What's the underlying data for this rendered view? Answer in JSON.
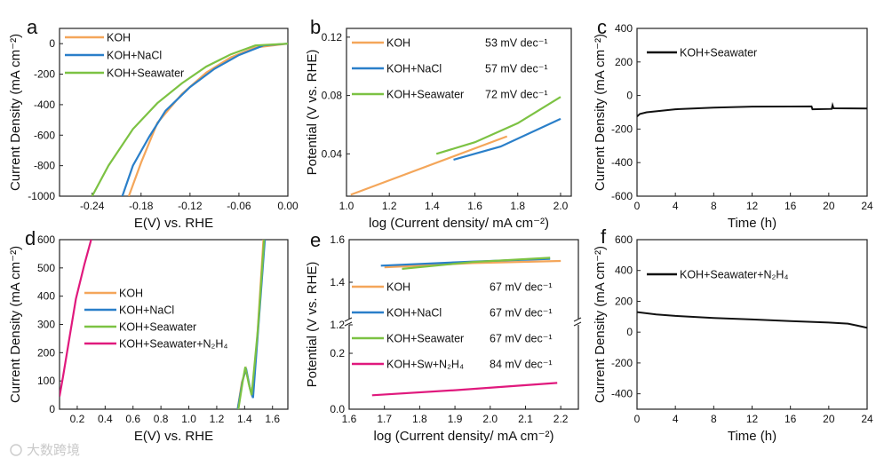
{
  "watermark": "大数跨境",
  "chart_data": [
    {
      "id": "a",
      "type": "line",
      "panel_label": "a",
      "xlabel": "E(V) vs. RHE",
      "ylabel": "Current Density (mA cm⁻²)",
      "xlim": [
        -0.28,
        0.0
      ],
      "ylim": [
        -1000,
        100
      ],
      "xticks": [
        -0.24,
        -0.18,
        -0.12,
        -0.06,
        0.0
      ],
      "xtick_labels": [
        "-0.24",
        "-0.18",
        "-0.12",
        "-0.06",
        "0.00"
      ],
      "yticks": [
        -1000,
        -800,
        -600,
        -400,
        -200,
        0
      ],
      "ytick_labels": [
        "-1000",
        "-800",
        "-600",
        "-400",
        "-200",
        "0"
      ],
      "legend": "top-left",
      "series": [
        {
          "name": "KOH",
          "color": "#f4a65a",
          "points": [
            [
              -0.195,
              -1000
            ],
            [
              -0.18,
              -780
            ],
            [
              -0.16,
              -520
            ],
            [
              -0.13,
              -330
            ],
            [
              -0.1,
              -190
            ],
            [
              -0.07,
              -90
            ],
            [
              -0.04,
              -25
            ],
            [
              0,
              0
            ]
          ]
        },
        {
          "name": "KOH+NaCl",
          "color": "#2a7fc9",
          "points": [
            [
              -0.203,
              -1000
            ],
            [
              -0.19,
              -800
            ],
            [
              -0.17,
              -610
            ],
            [
              -0.15,
              -440
            ],
            [
              -0.12,
              -285
            ],
            [
              -0.09,
              -165
            ],
            [
              -0.06,
              -75
            ],
            [
              -0.03,
              -12
            ],
            [
              0,
              0
            ]
          ]
        },
        {
          "name": "KOH+Seawater",
          "color": "#7cc243",
          "points": [
            [
              -0.24,
              -1000
            ],
            [
              -0.22,
              -800
            ],
            [
              -0.19,
              -560
            ],
            [
              -0.16,
              -390
            ],
            [
              -0.13,
              -260
            ],
            [
              -0.1,
              -150
            ],
            [
              -0.07,
              -70
            ],
            [
              -0.04,
              -12
            ],
            [
              0,
              0
            ]
          ]
        }
      ]
    },
    {
      "id": "b",
      "type": "line",
      "panel_label": "b",
      "xlabel": "log (Current density/ mA cm⁻²)",
      "ylabel": "Potential (V vs. RHE)",
      "xlim": [
        1.0,
        2.05
      ],
      "ylim": [
        0.011,
        0.126
      ],
      "xticks": [
        1.0,
        1.2,
        1.4,
        1.6,
        1.8,
        2.0
      ],
      "xtick_labels": [
        "1.0",
        "1.2",
        "1.4",
        "1.6",
        "1.8",
        "2.0"
      ],
      "yticks": [
        0.04,
        0.08,
        0.12
      ],
      "ytick_labels": [
        "0.04",
        "0.08",
        "0.12"
      ],
      "legend": "top-left",
      "series": [
        {
          "name": "KOH",
          "tafel": "53 mV dec⁻¹",
          "color": "#f4a65a",
          "points": [
            [
              1.02,
              0.012
            ],
            [
              1.75,
              0.052
            ]
          ]
        },
        {
          "name": "KOH+NaCl",
          "tafel": "57 mV dec⁻¹",
          "color": "#2a7fc9",
          "points": [
            [
              1.5,
              0.036
            ],
            [
              1.72,
              0.045
            ],
            [
              2.0,
              0.064
            ]
          ]
        },
        {
          "name": "KOH+Seawater",
          "tafel": "72 mV dec⁻¹",
          "color": "#7cc243",
          "points": [
            [
              1.42,
              0.04
            ],
            [
              1.6,
              0.048
            ],
            [
              1.8,
              0.061
            ],
            [
              2.0,
              0.079
            ]
          ]
        }
      ]
    },
    {
      "id": "c",
      "type": "line",
      "panel_label": "c",
      "xlabel": "Time (h)",
      "ylabel": "Current Density (mA cm⁻²)",
      "xlim": [
        0,
        24
      ],
      "ylim": [
        -600,
        400
      ],
      "xticks": [
        0,
        4,
        8,
        12,
        16,
        20,
        24
      ],
      "xtick_labels": [
        "0",
        "4",
        "8",
        "12",
        "16",
        "20",
        "24"
      ],
      "yticks": [
        -600,
        -400,
        -200,
        0,
        200,
        400
      ],
      "ytick_labels": [
        "-600",
        "-400",
        "-200",
        "0",
        "200",
        "400"
      ],
      "legend": "top-left",
      "series": [
        {
          "name": "KOH+Seawater",
          "color": "#111111",
          "points": [
            [
              0,
              -125
            ],
            [
              0.3,
              -110
            ],
            [
              1,
              -100
            ],
            [
              4,
              -82
            ],
            [
              8,
              -72
            ],
            [
              12,
              -66
            ],
            [
              18.2,
              -65
            ],
            [
              18.3,
              -82
            ],
            [
              20.3,
              -80
            ],
            [
              20.4,
              -58
            ],
            [
              20.5,
              -76
            ],
            [
              24,
              -78
            ]
          ]
        }
      ]
    },
    {
      "id": "d",
      "type": "line",
      "panel_label": "d",
      "xlabel": "E(V) vs. RHE",
      "ylabel": "Current Density (mA cm⁻²)",
      "xlim": [
        0.073,
        1.71
      ],
      "ylim": [
        0,
        600
      ],
      "xticks": [
        0.2,
        0.4,
        0.6,
        0.8,
        1.0,
        1.2,
        1.4,
        1.6
      ],
      "xtick_labels": [
        "0.2",
        "0.4",
        "0.6",
        "0.8",
        "1.0",
        "1.2",
        "1.4",
        "1.6"
      ],
      "yticks": [
        0,
        100,
        200,
        300,
        400,
        500,
        600
      ],
      "ytick_labels": [
        "0",
        "100",
        "200",
        "300",
        "400",
        "500",
        "600"
      ],
      "legend": "center-left",
      "series": [
        {
          "name": "KOH",
          "color": "#f4a65a",
          "points": [
            [
              1.35,
              0
            ],
            [
              1.38,
              95
            ],
            [
              1.41,
              140
            ],
            [
              1.435,
              80
            ],
            [
              1.455,
              45
            ],
            [
              1.49,
              250
            ],
            [
              1.535,
              600
            ]
          ]
        },
        {
          "name": "KOH+NaCl",
          "color": "#2a7fc9",
          "points": [
            [
              1.35,
              0
            ],
            [
              1.385,
              100
            ],
            [
              1.41,
              145
            ],
            [
              1.44,
              70
            ],
            [
              1.46,
              40
            ],
            [
              1.5,
              300
            ],
            [
              1.545,
              600
            ]
          ]
        },
        {
          "name": "KOH+Seawater",
          "color": "#7cc243",
          "points": [
            [
              1.355,
              0
            ],
            [
              1.39,
              110
            ],
            [
              1.405,
              150
            ],
            [
              1.43,
              90
            ],
            [
              1.45,
              50
            ],
            [
              1.495,
              280
            ],
            [
              1.54,
              600
            ]
          ]
        },
        {
          "name": "KOH+Seawater+N₂H₄",
          "color": "#e0197d",
          "points": [
            [
              0.073,
              45
            ],
            [
              0.1,
              120
            ],
            [
              0.14,
              240
            ],
            [
              0.19,
              390
            ],
            [
              0.25,
              510
            ],
            [
              0.3,
              600
            ]
          ]
        }
      ]
    },
    {
      "id": "e",
      "type": "line",
      "panel_label": "e",
      "xlabel": "log (Current density/ mA cm⁻²)",
      "ylabel": "Potential (V vs. RHE)",
      "xlim": [
        1.6,
        2.25
      ],
      "ylim": [
        0.0,
        1.6
      ],
      "y_break": [
        0.27,
        1.2
      ],
      "xticks": [
        1.6,
        1.7,
        1.8,
        1.9,
        2.0,
        2.1,
        2.2
      ],
      "xtick_labels": [
        "1.6",
        "1.7",
        "1.8",
        "1.9",
        "2.0",
        "2.1",
        "2.2"
      ],
      "yticks": [
        0.0,
        0.2,
        1.2,
        1.4,
        1.6
      ],
      "ytick_labels": [
        "0.0",
        "0.2",
        "1.2",
        "1.4",
        "1.6"
      ],
      "legend": "center-left",
      "series": [
        {
          "name": "KOH",
          "tafel": "67 mV dec⁻¹",
          "color": "#f4a65a",
          "points": [
            [
              1.7,
              1.47
            ],
            [
              1.95,
              1.49
            ],
            [
              2.2,
              1.5
            ]
          ]
        },
        {
          "name": "KOH+NaCl",
          "tafel": "67 mV dec⁻¹",
          "color": "#2a7fc9",
          "points": [
            [
              1.69,
              1.478
            ],
            [
              1.95,
              1.497
            ],
            [
              2.17,
              1.51
            ]
          ]
        },
        {
          "name": "KOH+Seawater",
          "tafel": "67 mV dec⁻¹",
          "color": "#7cc243",
          "points": [
            [
              1.75,
              1.463
            ],
            [
              1.95,
              1.495
            ],
            [
              2.17,
              1.515
            ]
          ]
        },
        {
          "name": "KOH+Sw+N₂H₄",
          "tafel": "84 mV dec⁻¹",
          "color": "#e0197d",
          "points": [
            [
              1.665,
              0.05
            ],
            [
              1.9,
              0.068
            ],
            [
              2.19,
              0.094
            ]
          ]
        }
      ]
    },
    {
      "id": "f",
      "type": "line",
      "panel_label": "f",
      "xlabel": "Time (h)",
      "ylabel": "Current Density (mA cm⁻²)",
      "xlim": [
        0,
        24
      ],
      "ylim": [
        -500,
        600
      ],
      "xticks": [
        0,
        4,
        8,
        12,
        16,
        20,
        24
      ],
      "xtick_labels": [
        "0",
        "4",
        "8",
        "12",
        "16",
        "20",
        "24"
      ],
      "yticks": [
        -400,
        -200,
        0,
        200,
        400,
        600
      ],
      "ytick_labels": [
        "-400",
        "-200",
        "0",
        "200",
        "400",
        "600"
      ],
      "legend": "top-left",
      "series": [
        {
          "name": "KOH+Seawater+N₂H₄",
          "color": "#111111",
          "points": [
            [
              0,
              130
            ],
            [
              2,
              115
            ],
            [
              4,
              105
            ],
            [
              8,
              92
            ],
            [
              12,
              82
            ],
            [
              16,
              72
            ],
            [
              20,
              62
            ],
            [
              22,
              55
            ],
            [
              23,
              42
            ],
            [
              24,
              28
            ]
          ]
        }
      ]
    }
  ]
}
